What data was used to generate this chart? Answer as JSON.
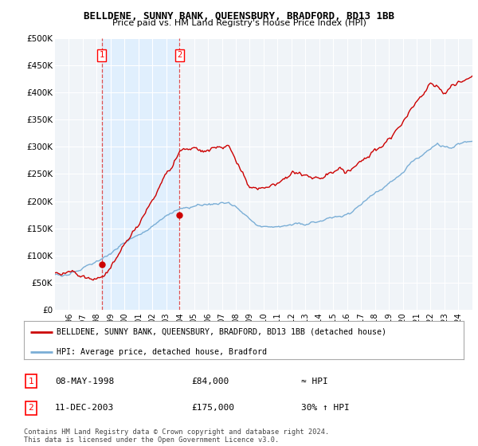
{
  "title": "BELLDENE, SUNNY BANK, QUEENSBURY, BRADFORD, BD13 1BB",
  "subtitle": "Price paid vs. HM Land Registry's House Price Index (HPI)",
  "ylabel_ticks": [
    "£0",
    "£50K",
    "£100K",
    "£150K",
    "£200K",
    "£250K",
    "£300K",
    "£350K",
    "£400K",
    "£450K",
    "£500K"
  ],
  "ytick_values": [
    0,
    50000,
    100000,
    150000,
    200000,
    250000,
    300000,
    350000,
    400000,
    450000,
    500000
  ],
  "ylim": [
    0,
    500000
  ],
  "xlim_start": 1995.0,
  "xlim_end": 2025.0,
  "xtick_labels": [
    "1996",
    "1997",
    "1998",
    "1999",
    "2000",
    "2001",
    "2002",
    "2003",
    "2004",
    "2005",
    "2006",
    "2007",
    "2008",
    "2009",
    "2010",
    "2011",
    "2012",
    "2013",
    "2014",
    "2015",
    "2016",
    "2017",
    "2018",
    "2019",
    "2020",
    "2021",
    "2022",
    "2023",
    "2024"
  ],
  "xtick_values": [
    1996,
    1997,
    1998,
    1999,
    2000,
    2001,
    2002,
    2003,
    2004,
    2005,
    2006,
    2007,
    2008,
    2009,
    2010,
    2011,
    2012,
    2013,
    2014,
    2015,
    2016,
    2017,
    2018,
    2019,
    2020,
    2021,
    2022,
    2023,
    2024
  ],
  "property_color": "#cc0000",
  "hpi_color": "#7aaed6",
  "shade_color": "#ddeeff",
  "sale1_x": 1998.36,
  "sale1_y": 84000,
  "sale2_x": 2003.95,
  "sale2_y": 175000,
  "legend_property": "BELLDENE, SUNNY BANK, QUEENSBURY, BRADFORD, BD13 1BB (detached house)",
  "legend_hpi": "HPI: Average price, detached house, Bradford",
  "sale1_label": "1",
  "sale1_date": "08-MAY-1998",
  "sale1_price": "£84,000",
  "sale1_vs_hpi": "≈ HPI",
  "sale2_label": "2",
  "sale2_date": "11-DEC-2003",
  "sale2_price": "£175,000",
  "sale2_vs_hpi": "30% ↑ HPI",
  "footer": "Contains HM Land Registry data © Crown copyright and database right 2024.\nThis data is licensed under the Open Government Licence v3.0.",
  "background_color": "#ffffff",
  "plot_bg_color": "#f0f4f8",
  "grid_color": "#ffffff"
}
